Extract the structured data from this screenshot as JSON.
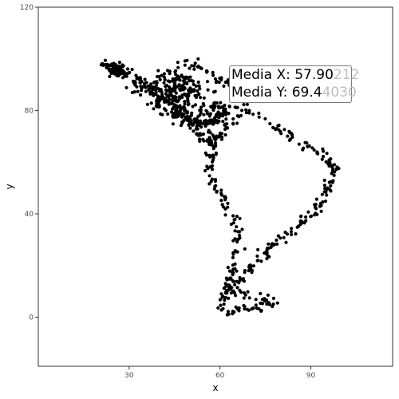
{
  "chart_data": {
    "type": "scatter",
    "title": "",
    "xlabel": "x",
    "ylabel": "y",
    "xlim": [
      0,
      117
    ],
    "ylim": [
      -19,
      120
    ],
    "x_ticks": [
      30,
      60,
      90
    ],
    "y_ticks": [
      0,
      40,
      80,
      120
    ],
    "grid": false,
    "legend": "none",
    "point_color": "#000000",
    "anchors": [
      [
        20,
        97
      ],
      [
        24,
        98
      ],
      [
        28,
        97
      ],
      [
        32,
        92
      ],
      [
        36,
        90
      ],
      [
        40,
        88
      ],
      [
        44,
        92
      ],
      [
        48,
        98
      ],
      [
        52,
        99
      ],
      [
        56,
        95
      ],
      [
        60,
        92
      ],
      [
        64,
        90
      ],
      [
        68,
        88
      ],
      [
        72,
        86
      ],
      [
        74,
        88
      ],
      [
        70,
        84
      ],
      [
        65,
        82
      ],
      [
        60,
        78
      ],
      [
        55,
        75
      ],
      [
        50,
        76
      ],
      [
        45,
        82
      ],
      [
        42,
        85
      ],
      [
        38,
        83
      ],
      [
        45,
        78
      ],
      [
        52,
        72
      ],
      [
        58,
        68
      ],
      [
        64,
        76
      ],
      [
        70,
        80
      ],
      [
        75,
        76
      ],
      [
        80,
        72
      ],
      [
        86,
        68
      ],
      [
        92,
        64
      ],
      [
        96,
        60
      ],
      [
        98,
        58
      ],
      [
        96,
        52
      ],
      [
        94,
        46
      ],
      [
        90,
        40
      ],
      [
        86,
        36
      ],
      [
        82,
        32
      ],
      [
        78,
        28
      ],
      [
        74,
        24
      ],
      [
        70,
        20
      ],
      [
        66,
        14
      ],
      [
        64,
        10
      ],
      [
        70,
        8
      ],
      [
        74,
        6
      ],
      [
        78,
        6
      ],
      [
        74,
        4
      ],
      [
        68,
        3
      ],
      [
        62,
        2
      ],
      [
        60,
        4
      ],
      [
        62,
        10
      ],
      [
        64,
        18
      ],
      [
        65,
        24
      ],
      [
        66,
        32
      ],
      [
        64,
        40
      ],
      [
        62,
        44
      ],
      [
        60,
        48
      ],
      [
        58,
        52
      ],
      [
        57,
        56
      ],
      [
        56,
        60
      ],
      [
        58,
        66
      ],
      [
        55,
        72
      ],
      [
        48,
        80
      ],
      [
        40,
        86
      ],
      [
        30,
        93
      ],
      [
        22,
        97
      ]
    ],
    "n_points": 720,
    "jitter": 0.9,
    "cloud_points": [
      {
        "cx": 46,
        "cy": 88,
        "sx": 9,
        "sy": 6,
        "n": 180
      },
      {
        "cx": 58,
        "cy": 78,
        "sx": 5,
        "sy": 5,
        "n": 60
      },
      {
        "cx": 26,
        "cy": 96,
        "sx": 2,
        "sy": 2,
        "n": 40
      }
    ]
  },
  "annotation": {
    "line1_bold": "Media X: 57.90",
    "line1_dim": "212",
    "line2_bold": "Media Y: 69.4",
    "line2_dim": "4030"
  }
}
